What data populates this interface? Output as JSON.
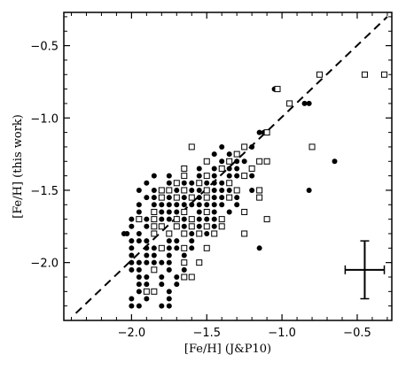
{
  "chart_data": {
    "type": "scatter",
    "xlabel": "[Fe/H] (J&P10)",
    "ylabel": "[Fe/H] (this work)",
    "xlim": [
      -2.45,
      -0.27
    ],
    "ylim": [
      -2.4,
      -0.27
    ],
    "x_ticks": [
      -2.0,
      -1.5,
      -1.0,
      -0.5
    ],
    "y_ticks": [
      -2.0,
      -1.5,
      -1.0,
      -0.5
    ],
    "x_tick_labels": [
      "−2.0",
      "−1.5",
      "−1.0",
      "−0.5"
    ],
    "y_tick_labels": [
      "−2.0",
      "−1.5",
      "−1.0",
      "−0.5"
    ],
    "grid": false,
    "reference_line": {
      "style": "dashed",
      "from": [
        -2.37,
        -2.35
      ],
      "to": [
        -0.3,
        -0.3
      ]
    },
    "error_bar": {
      "x": -0.45,
      "y": -2.05,
      "xerr": 0.13,
      "yerr": 0.2
    },
    "colors": {
      "filled_marker": "#000000",
      "open_marker_edge": "#000000",
      "open_marker_fill": "#ffffff"
    },
    "series": [
      {
        "marker": "filled-circle",
        "points": [
          [
            -2.0,
            -2.3
          ],
          [
            -1.95,
            -2.3
          ],
          [
            -1.8,
            -2.3
          ],
          [
            -1.75,
            -2.3
          ],
          [
            -2.0,
            -2.25
          ],
          [
            -1.9,
            -2.25
          ],
          [
            -1.75,
            -2.25
          ],
          [
            -1.95,
            -2.2
          ],
          [
            -1.85,
            -2.2
          ],
          [
            -1.75,
            -2.2
          ],
          [
            -1.95,
            -2.15
          ],
          [
            -1.9,
            -2.15
          ],
          [
            -1.8,
            -2.15
          ],
          [
            -1.7,
            -2.15
          ],
          [
            -1.95,
            -2.1
          ],
          [
            -1.9,
            -2.1
          ],
          [
            -1.8,
            -2.1
          ],
          [
            -1.7,
            -2.1
          ],
          [
            -2.0,
            -2.05
          ],
          [
            -1.95,
            -2.05
          ],
          [
            -1.85,
            -2.05
          ],
          [
            -1.75,
            -2.05
          ],
          [
            -1.65,
            -2.05
          ],
          [
            -2.0,
            -2.0
          ],
          [
            -1.95,
            -2.0
          ],
          [
            -1.9,
            -2.0
          ],
          [
            -1.85,
            -2.0
          ],
          [
            -1.8,
            -2.0
          ],
          [
            -1.75,
            -2.0
          ],
          [
            -1.65,
            -2.0
          ],
          [
            -2.0,
            -1.95
          ],
          [
            -1.9,
            -1.95
          ],
          [
            -1.85,
            -1.95
          ],
          [
            -1.75,
            -1.95
          ],
          [
            -1.65,
            -1.95
          ],
          [
            -2.0,
            -1.9
          ],
          [
            -1.9,
            -1.9
          ],
          [
            -1.85,
            -1.9
          ],
          [
            -1.75,
            -1.9
          ],
          [
            -1.7,
            -1.9
          ],
          [
            -1.6,
            -1.9
          ],
          [
            -2.0,
            -1.85
          ],
          [
            -1.95,
            -1.85
          ],
          [
            -1.9,
            -1.85
          ],
          [
            -1.75,
            -1.85
          ],
          [
            -1.7,
            -1.85
          ],
          [
            -1.6,
            -1.85
          ],
          [
            -2.05,
            -1.8
          ],
          [
            -2.03,
            -1.8
          ],
          [
            -1.95,
            -1.8
          ],
          [
            -1.85,
            -1.8
          ],
          [
            -1.75,
            -1.8
          ],
          [
            -1.6,
            -1.8
          ],
          [
            -1.5,
            -1.8
          ],
          [
            -2.0,
            -1.75
          ],
          [
            -1.9,
            -1.75
          ],
          [
            -1.8,
            -1.75
          ],
          [
            -1.65,
            -1.75
          ],
          [
            -1.55,
            -1.75
          ],
          [
            -1.45,
            -1.75
          ],
          [
            -1.4,
            -1.75
          ],
          [
            -2.0,
            -1.7
          ],
          [
            -1.9,
            -1.7
          ],
          [
            -1.8,
            -1.7
          ],
          [
            -1.75,
            -1.7
          ],
          [
            -1.65,
            -1.7
          ],
          [
            -1.55,
            -1.7
          ],
          [
            -1.5,
            -1.7
          ],
          [
            -1.45,
            -1.7
          ],
          [
            -1.95,
            -1.65
          ],
          [
            -1.85,
            -1.65
          ],
          [
            -1.8,
            -1.65
          ],
          [
            -1.75,
            -1.65
          ],
          [
            -1.7,
            -1.65
          ],
          [
            -1.55,
            -1.65
          ],
          [
            -1.45,
            -1.65
          ],
          [
            -1.35,
            -1.65
          ],
          [
            -1.95,
            -1.6
          ],
          [
            -1.85,
            -1.6
          ],
          [
            -1.8,
            -1.6
          ],
          [
            -1.75,
            -1.6
          ],
          [
            -1.7,
            -1.6
          ],
          [
            -1.65,
            -1.6
          ],
          [
            -1.6,
            -1.6
          ],
          [
            -1.55,
            -1.6
          ],
          [
            -1.5,
            -1.6
          ],
          [
            -1.45,
            -1.6
          ],
          [
            -1.4,
            -1.6
          ],
          [
            -1.3,
            -1.6
          ],
          [
            -1.9,
            -1.55
          ],
          [
            -1.85,
            -1.55
          ],
          [
            -1.75,
            -1.55
          ],
          [
            -1.65,
            -1.55
          ],
          [
            -1.55,
            -1.55
          ],
          [
            -1.45,
            -1.55
          ],
          [
            -1.4,
            -1.55
          ],
          [
            -1.3,
            -1.55
          ],
          [
            -1.95,
            -1.5
          ],
          [
            -1.85,
            -1.5
          ],
          [
            -1.8,
            -1.5
          ],
          [
            -1.7,
            -1.5
          ],
          [
            -1.6,
            -1.5
          ],
          [
            -1.55,
            -1.5
          ],
          [
            -1.45,
            -1.5
          ],
          [
            -1.4,
            -1.5
          ],
          [
            -1.35,
            -1.5
          ],
          [
            -1.2,
            -1.5
          ],
          [
            -0.82,
            -1.5
          ],
          [
            -1.9,
            -1.45
          ],
          [
            -1.75,
            -1.45
          ],
          [
            -1.65,
            -1.45
          ],
          [
            -1.6,
            -1.45
          ],
          [
            -1.5,
            -1.45
          ],
          [
            -1.45,
            -1.45
          ],
          [
            -1.4,
            -1.45
          ],
          [
            -1.85,
            -1.4
          ],
          [
            -1.75,
            -1.4
          ],
          [
            -1.65,
            -1.4
          ],
          [
            -1.55,
            -1.4
          ],
          [
            -1.45,
            -1.4
          ],
          [
            -1.35,
            -1.4
          ],
          [
            -1.3,
            -1.4
          ],
          [
            -1.2,
            -1.4
          ],
          [
            -1.55,
            -1.35
          ],
          [
            -1.45,
            -1.35
          ],
          [
            -1.35,
            -1.35
          ],
          [
            -1.3,
            -1.35
          ],
          [
            -1.2,
            -1.35
          ],
          [
            -1.4,
            -1.3
          ],
          [
            -1.3,
            -1.3
          ],
          [
            -1.25,
            -1.3
          ],
          [
            -0.65,
            -1.3
          ],
          [
            -1.45,
            -1.25
          ],
          [
            -1.35,
            -1.25
          ],
          [
            -1.4,
            -1.2
          ],
          [
            -1.2,
            -1.2
          ],
          [
            -1.15,
            -1.1
          ],
          [
            -1.12,
            -1.1
          ],
          [
            -0.85,
            -0.9
          ],
          [
            -0.82,
            -0.9
          ],
          [
            -1.05,
            -0.8
          ],
          [
            -1.15,
            -1.9
          ]
        ]
      },
      {
        "marker": "open-square",
        "points": [
          [
            -1.9,
            -2.2
          ],
          [
            -1.85,
            -2.2
          ],
          [
            -1.65,
            -2.1
          ],
          [
            -1.6,
            -2.1
          ],
          [
            -1.85,
            -2.05
          ],
          [
            -1.65,
            -2.0
          ],
          [
            -1.55,
            -2.0
          ],
          [
            -1.8,
            -1.9
          ],
          [
            -1.65,
            -1.9
          ],
          [
            -1.5,
            -1.9
          ],
          [
            -1.85,
            -1.8
          ],
          [
            -1.75,
            -1.8
          ],
          [
            -1.65,
            -1.8
          ],
          [
            -1.55,
            -1.8
          ],
          [
            -1.45,
            -1.8
          ],
          [
            -1.25,
            -1.8
          ],
          [
            -1.85,
            -1.75
          ],
          [
            -1.8,
            -1.75
          ],
          [
            -1.7,
            -1.75
          ],
          [
            -1.6,
            -1.75
          ],
          [
            -1.5,
            -1.75
          ],
          [
            -1.4,
            -1.75
          ],
          [
            -1.95,
            -1.7
          ],
          [
            -1.85,
            -1.7
          ],
          [
            -1.7,
            -1.7
          ],
          [
            -1.6,
            -1.7
          ],
          [
            -1.4,
            -1.7
          ],
          [
            -1.1,
            -1.7
          ],
          [
            -1.85,
            -1.65
          ],
          [
            -1.65,
            -1.65
          ],
          [
            -1.5,
            -1.65
          ],
          [
            -1.25,
            -1.65
          ],
          [
            -1.8,
            -1.55
          ],
          [
            -1.7,
            -1.55
          ],
          [
            -1.6,
            -1.55
          ],
          [
            -1.5,
            -1.55
          ],
          [
            -1.35,
            -1.55
          ],
          [
            -1.15,
            -1.55
          ],
          [
            -1.8,
            -1.5
          ],
          [
            -1.75,
            -1.5
          ],
          [
            -1.65,
            -1.5
          ],
          [
            -1.5,
            -1.5
          ],
          [
            -1.3,
            -1.5
          ],
          [
            -1.15,
            -1.5
          ],
          [
            -1.7,
            -1.45
          ],
          [
            -1.55,
            -1.45
          ],
          [
            -1.35,
            -1.45
          ],
          [
            -1.65,
            -1.4
          ],
          [
            -1.5,
            -1.4
          ],
          [
            -1.25,
            -1.4
          ],
          [
            -1.65,
            -1.35
          ],
          [
            -1.4,
            -1.35
          ],
          [
            -1.2,
            -1.35
          ],
          [
            -1.5,
            -1.3
          ],
          [
            -1.35,
            -1.3
          ],
          [
            -1.15,
            -1.3
          ],
          [
            -1.1,
            -1.3
          ],
          [
            -1.3,
            -1.25
          ],
          [
            -1.6,
            -1.2
          ],
          [
            -1.25,
            -1.2
          ],
          [
            -0.8,
            -1.2
          ],
          [
            -1.1,
            -1.1
          ],
          [
            -0.95,
            -0.9
          ],
          [
            -1.03,
            -0.8
          ],
          [
            -0.75,
            -0.7
          ],
          [
            -0.45,
            -0.7
          ],
          [
            -0.32,
            -0.7
          ]
        ]
      }
    ]
  }
}
